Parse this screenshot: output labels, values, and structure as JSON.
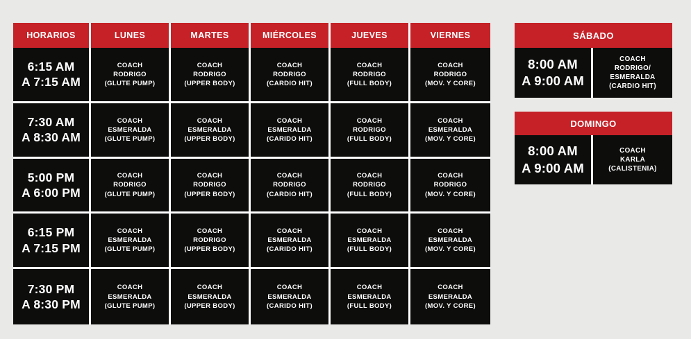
{
  "colors": {
    "header_red": "#c52127",
    "cell_black": "#0d0d0c",
    "divider_white": "#ffffff",
    "background_gray": "#e9e9e8",
    "text_white": "#ffffff"
  },
  "weekday_table": {
    "headers": [
      "HORARIOS",
      "LUNES",
      "MARTES",
      "MIÉRCOLES",
      "JUEVES",
      "VIERNES"
    ],
    "rows": [
      {
        "time": "6:15 AM\nA 7:15 AM",
        "classes": [
          "COACH\nRODRIGO\n(GLUTE PUMP)",
          "COACH\nRODRIGO\n(UPPER BODY)",
          "COACH\nRODRIGO\n(CARDIO HIT)",
          "COACH\nRODRIGO\n(FULL BODY)",
          "COACH\nRODRIGO\n(MOV. Y CORE)"
        ]
      },
      {
        "time": "7:30 AM\nA 8:30 AM",
        "classes": [
          "COACH\nESMERALDA\n(GLUTE PUMP)",
          "COACH\nESMERALDA\n(UPPER BODY)",
          "COACH\nESMERALDA\n(CARIDO HIT)",
          "COACH\nRODRIGO\n(FULL BODY)",
          "COACH\nESMERALDA\n(MOV. Y CORE)"
        ]
      },
      {
        "time": "5:00 PM\nA 6:00 PM",
        "classes": [
          "COACH\nRODRIGO\n(GLUTE PUMP)",
          "COACH\nRODRIGO\n(UPPER BODY)",
          "COACH\nRODRIGO\n(CARDIO HIT)",
          "COACH\nRODRIGO\n(FULL BODY)",
          "COACH\nRODRIGO\n(MOV. Y CORE)"
        ]
      },
      {
        "time": "6:15 PM\nA 7:15 PM",
        "classes": [
          "COACH\nESMERALDA\n(GLUTE PUMP)",
          "COACH\nRODRIGO\n(UPPER BODY)",
          "COACH\nESMERALDA\n(CARIDO HIT)",
          "COACH\nESMERALDA\n(FULL BODY)",
          "COACH\nESMERALDA\n(MOV. Y CORE)"
        ]
      },
      {
        "time": "7:30 PM\nA 8:30 PM",
        "classes": [
          "COACH\nESMERALDA\n(GLUTE PUMP)",
          "COACH\nESMERALDA\n(UPPER BODY)",
          "COACH\nESMERALDA\n(CARIDO HIT)",
          "COACH\nESMERALDA\n(FULL BODY)",
          "COACH\nESMERALDA\n(MOV. Y CORE)"
        ]
      }
    ]
  },
  "saturday_table": {
    "title": "SÁBADO",
    "time": "8:00 AM\nA 9:00 AM",
    "class": "COACH\nRODRIGO/\nESMERALDA\n(CARDIO HIT)"
  },
  "sunday_table": {
    "title": "DOMINGO",
    "time": "8:00 AM\nA 9:00 AM",
    "class": "COACH\nKARLA\n(CALISTENIA)"
  }
}
